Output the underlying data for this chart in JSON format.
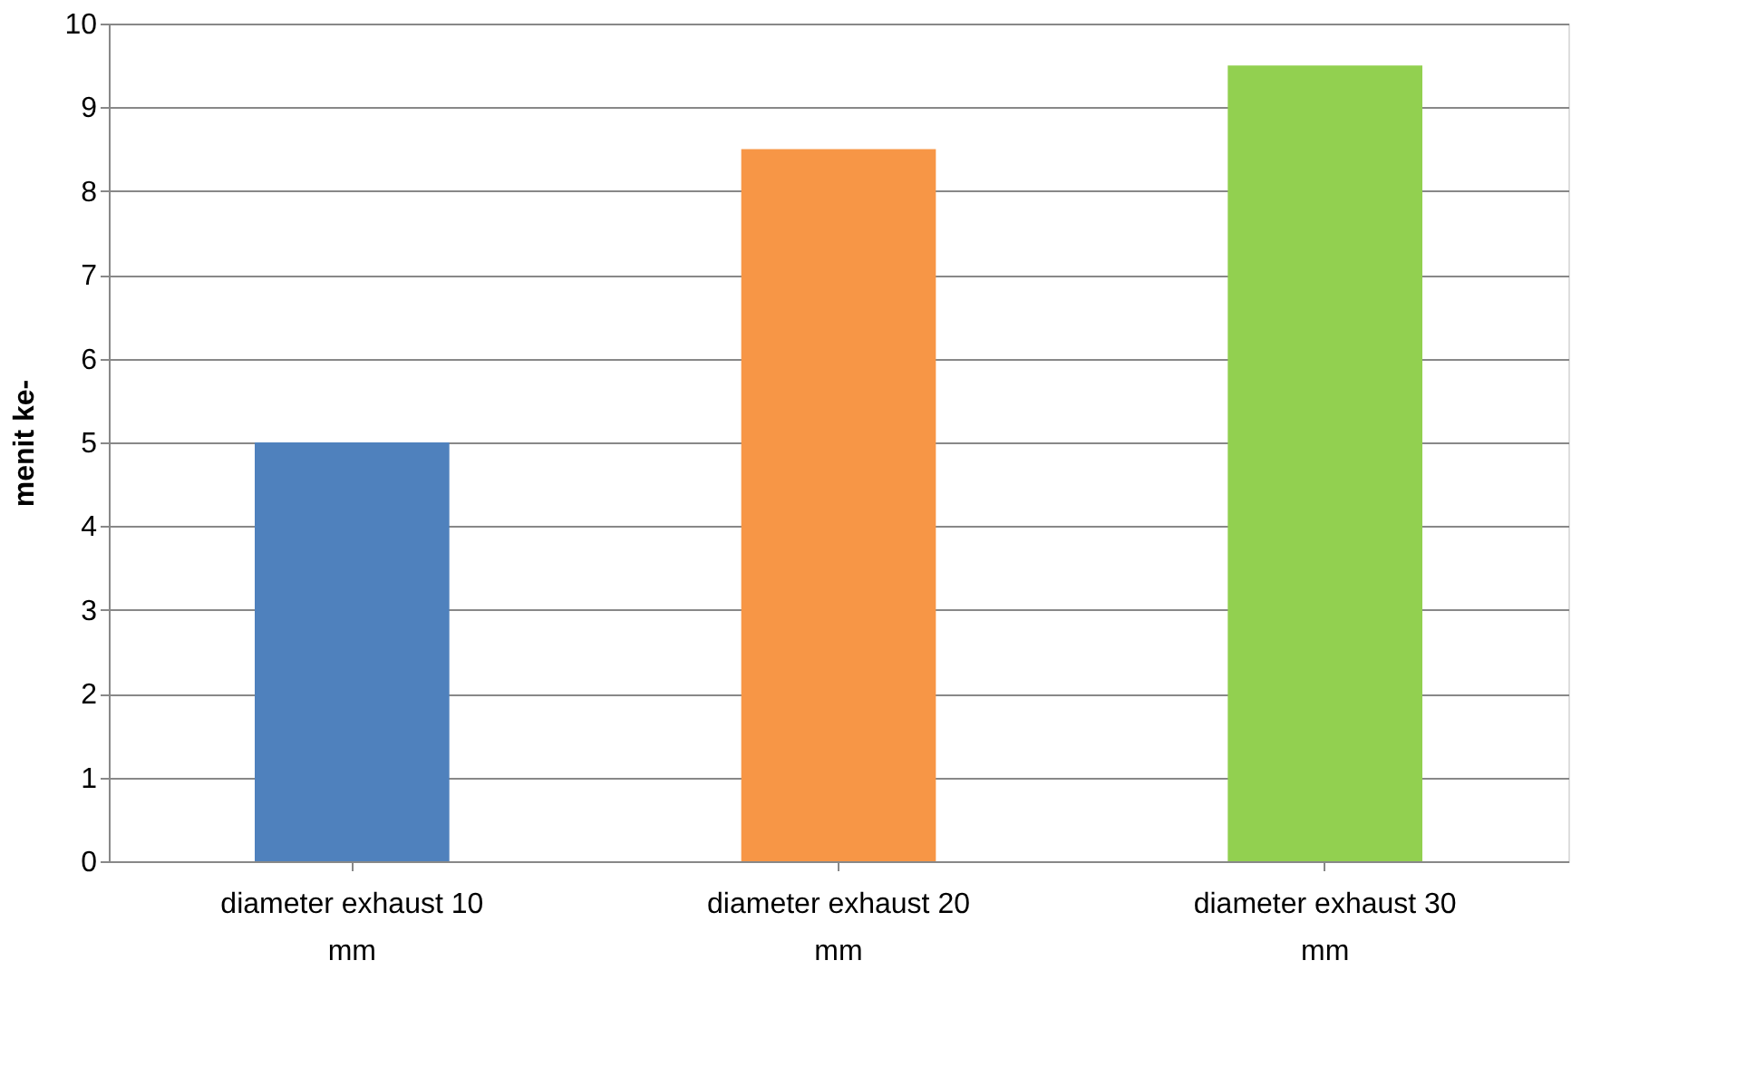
{
  "chart_data": {
    "type": "bar",
    "categories": [
      "diameter exhaust 10 mm",
      "diameter exhaust 20 mm",
      "diameter exhaust 30 mm"
    ],
    "values": [
      5,
      8.5,
      9.5
    ],
    "colors": [
      "#4f81bd",
      "#f79646",
      "#92d050"
    ],
    "ylabel": "menit ke-",
    "ylim": [
      0,
      10
    ],
    "yticks": [
      0,
      1,
      2,
      3,
      4,
      5,
      6,
      7,
      8,
      9,
      10
    ],
    "grid": "y",
    "legend": false
  }
}
